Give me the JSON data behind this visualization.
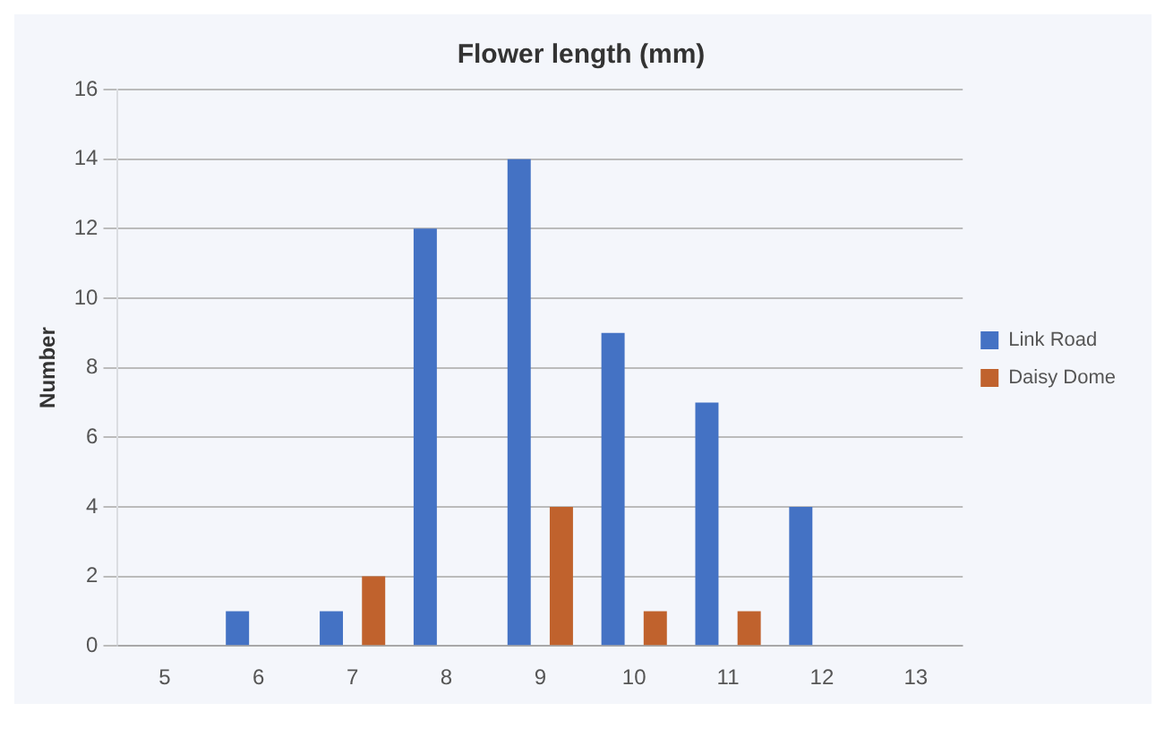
{
  "chart_data": {
    "type": "bar",
    "title": "Flower length (mm)",
    "ylabel": "Number",
    "categories": [
      "5",
      "6",
      "7",
      "8",
      "9",
      "10",
      "11",
      "12",
      "13"
    ],
    "series": [
      {
        "name": "Link Road",
        "color": "#4472c4",
        "values": [
          0,
          1,
          1,
          12,
          14,
          9,
          7,
          4,
          0
        ]
      },
      {
        "name": "Daisy Dome",
        "color": "#c0622d",
        "values": [
          0,
          0,
          2,
          0,
          4,
          1,
          1,
          0,
          0
        ]
      }
    ],
    "ylim": [
      0,
      16
    ],
    "yticks": [
      0,
      2,
      4,
      6,
      8,
      10,
      12,
      14,
      16
    ],
    "grid": "y",
    "legend": "right"
  }
}
